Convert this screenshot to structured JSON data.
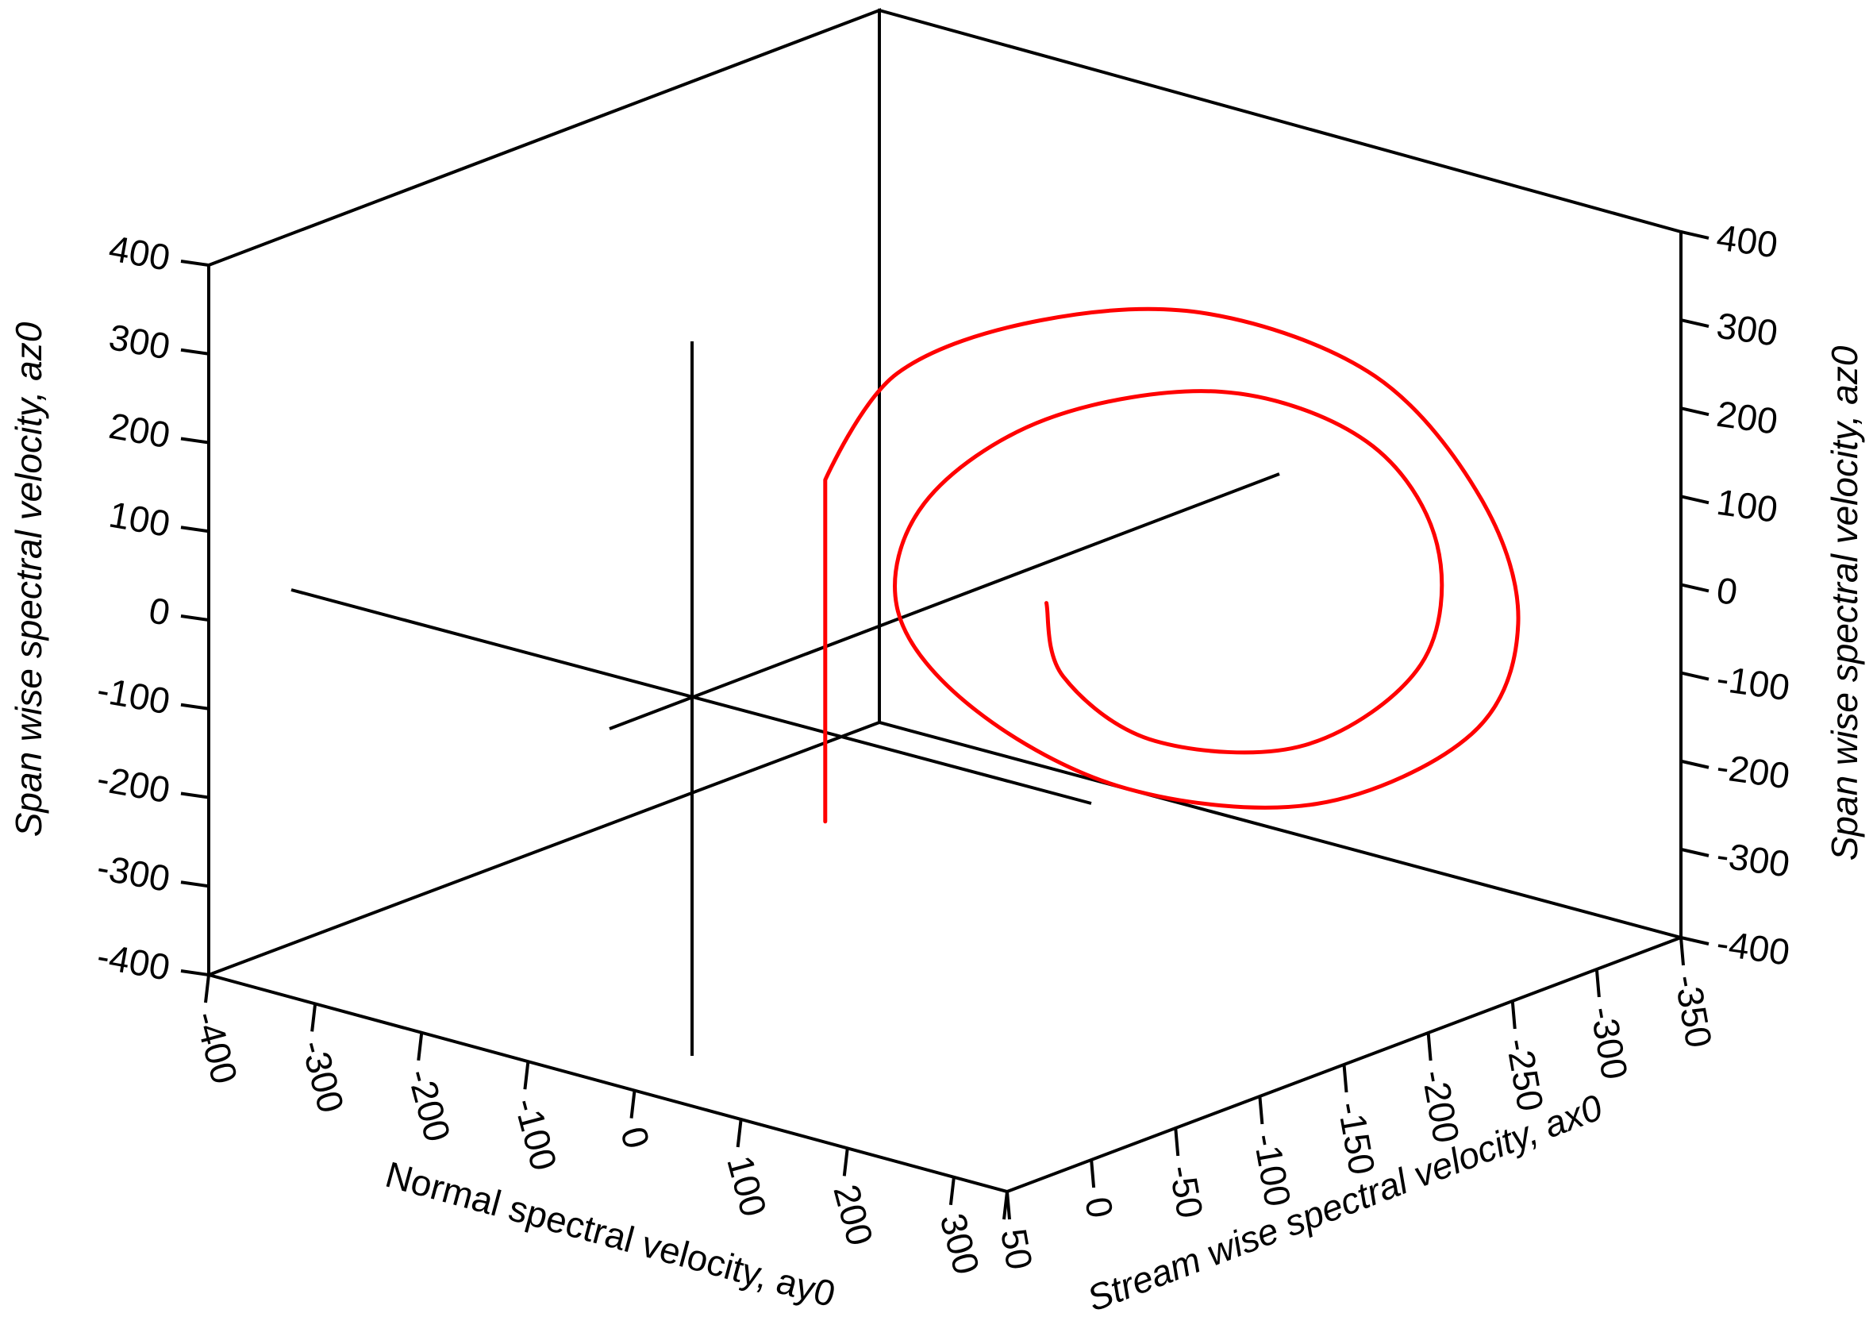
{
  "chart_data": {
    "type": "line3d",
    "xlabel": "Stream wise spectral velocity, ax0",
    "ylabel": "Normal spectral velocity, ay0",
    "zlabel": "Span wise spectral velocity, az0",
    "zlabel_right": "Span wise spectral velocity, az0",
    "x_ticks": [
      50,
      0,
      -50,
      -100,
      -150,
      -200,
      -250,
      -300,
      -350
    ],
    "x_tick_labels": [
      "50",
      "0",
      "-50",
      "-100",
      "-150",
      "-200",
      "-250",
      "-300",
      "-350"
    ],
    "y_ticks": [
      -400,
      -300,
      -200,
      -100,
      0,
      100,
      200,
      300
    ],
    "y_tick_labels": [
      "-400",
      "-300",
      "-200",
      "-100",
      "0",
      "100",
      "200",
      "300"
    ],
    "z_ticks": [
      400,
      300,
      200,
      100,
      0,
      -100,
      -200,
      -300,
      -400
    ],
    "z_tick_labels": [
      "400",
      "300",
      "200",
      "100",
      "0",
      "-100",
      "-200",
      "-300",
      "-400"
    ],
    "xlim": [
      50,
      -350
    ],
    "ylim": [
      -400,
      350
    ],
    "zlim": [
      -400,
      400
    ],
    "grid": false,
    "legend": "none",
    "colors": {
      "trajectory": "#ff0000",
      "axes": "#000000"
    },
    "series": [
      {
        "points": [
          {
            "x": 0,
            "y": 100,
            "z": -100
          },
          {
            "x": 0,
            "y": 100,
            "z": 285
          },
          {
            "x": -30,
            "y": 120,
            "z": 390
          },
          {
            "x": -90,
            "y": 160,
            "z": 420
          },
          {
            "x": -170,
            "y": 190,
            "z": 380
          },
          {
            "x": -260,
            "y": 205,
            "z": 250
          },
          {
            "x": -320,
            "y": 210,
            "z": 70
          },
          {
            "x": -345,
            "y": 205,
            "z": -90
          },
          {
            "x": -330,
            "y": 185,
            "z": -210
          },
          {
            "x": -260,
            "y": 150,
            "z": -250
          },
          {
            "x": -170,
            "y": 115,
            "z": -180
          },
          {
            "x": -90,
            "y": 100,
            "z": -40
          },
          {
            "x": -40,
            "y": 105,
            "z": 110
          },
          {
            "x": -40,
            "y": 130,
            "z": 240
          },
          {
            "x": -90,
            "y": 165,
            "z": 310
          },
          {
            "x": -175,
            "y": 195,
            "z": 290
          },
          {
            "x": -255,
            "y": 205,
            "z": 180
          },
          {
            "x": -300,
            "y": 200,
            "z": 30
          },
          {
            "x": -300,
            "y": 185,
            "z": -110
          },
          {
            "x": -250,
            "y": 155,
            "z": -175
          },
          {
            "x": -180,
            "y": 125,
            "z": -130
          },
          {
            "x": -135,
            "y": 110,
            "z": -30
          },
          {
            "x": -125,
            "y": 110,
            "z": 60
          }
        ]
      }
    ]
  }
}
